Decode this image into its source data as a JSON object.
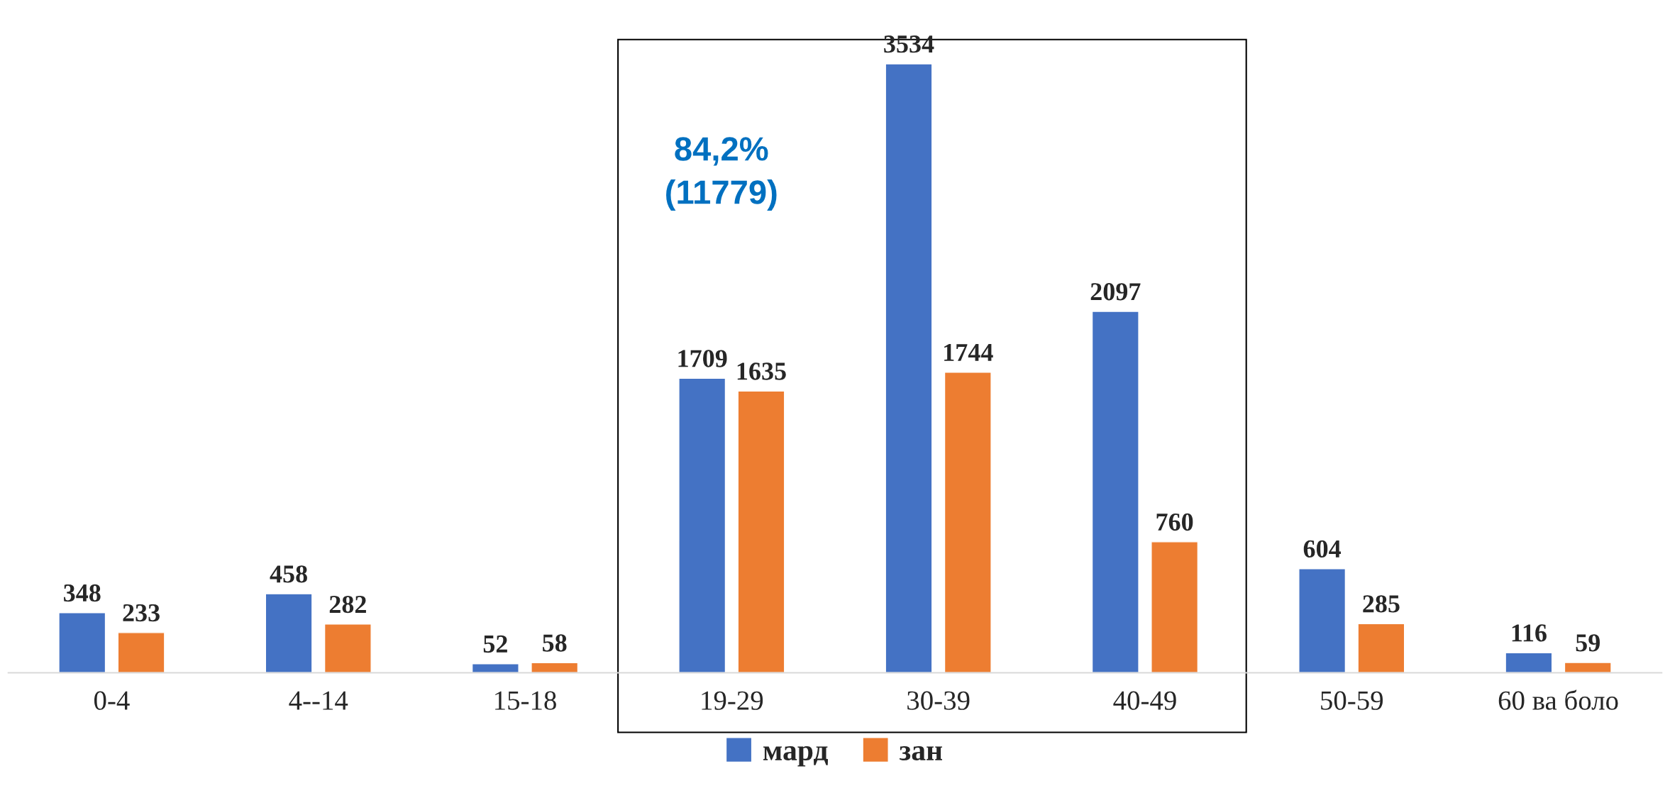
{
  "chart_data": {
    "type": "bar",
    "categories": [
      "0-4",
      "4--14",
      "15-18",
      "19-29",
      "30-39",
      "40-49",
      "50-59",
      "60 ва боло"
    ],
    "series": [
      {
        "name": "мард",
        "color": "#4472c4",
        "values": [
          348,
          458,
          52,
          1709,
          3534,
          2097,
          604,
          116
        ]
      },
      {
        "name": "зан",
        "color": "#ed7d31",
        "values": [
          233,
          282,
          58,
          1635,
          1744,
          760,
          285,
          59
        ]
      }
    ],
    "data_labels": true,
    "tick_labels": "x",
    "legend": "bottom",
    "grid": false,
    "annotations": [
      "84,2%\n(11779)"
    ]
  }
}
